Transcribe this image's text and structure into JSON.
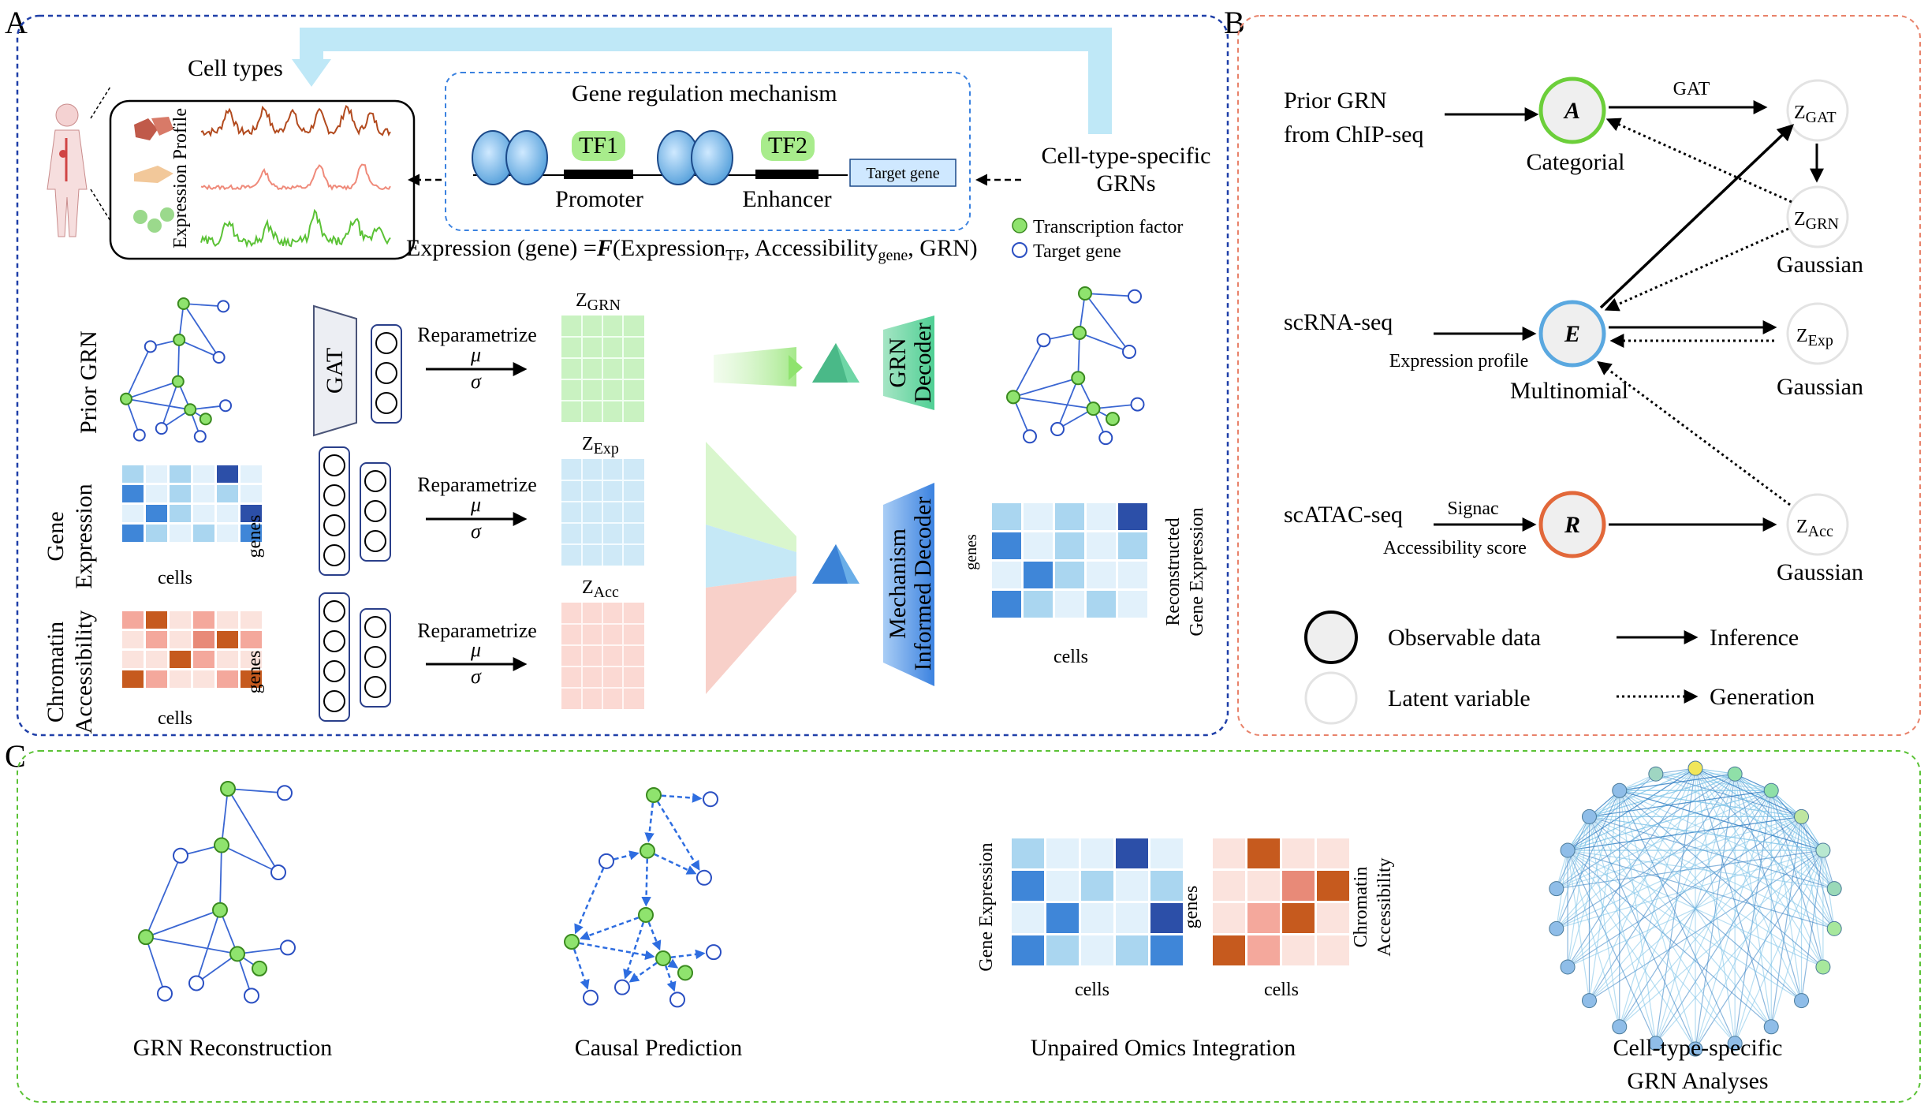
{
  "panels": {
    "a": {
      "letter": "A",
      "cell_types": "Cell types",
      "expression_profile": "Expression Profile",
      "mechanism_title": "Gene regulation mechanism",
      "tf1": "TF1",
      "tf2": "TF2",
      "promoter": "Promoter",
      "enhancer": "Enhancer",
      "target_gene": "Target gene",
      "ct_grns_line1": "Cell-type-specific",
      "ct_grns_line2": "GRNs",
      "formula_prefix": "Expression (gene) =",
      "formula_F": "F",
      "formula_open": "(Expression",
      "formula_sub_tf": "TF",
      "formula_mid": ", Accessibility",
      "formula_sub_gene": "gene",
      "formula_end": ", GRN)",
      "legend_tf": "Transcription factor",
      "legend_target": "Target gene",
      "row_prior": "Prior GRN",
      "row_gene_1": "Gene",
      "row_gene_2": "Expression",
      "row_chrom_1": "Chromatin",
      "row_chrom_2": "Accessibility",
      "genes": "genes",
      "cells": "cells",
      "gat": "GAT",
      "reparam": "Reparametrize",
      "mu": "μ",
      "sigma": "σ",
      "z": "Z",
      "z_grn_sub": "GRN",
      "z_exp_sub": "Exp",
      "z_acc_sub": "Acc",
      "grn_decoder_1": "GRN",
      "grn_decoder_2": "Decoder",
      "mech_decoder_1": "Mechanism",
      "mech_decoder_2": "Informed Decoder",
      "recon_1": "Reconstructed",
      "recon_2": "Gene Expression"
    },
    "b": {
      "letter": "B",
      "prior_1": "Prior GRN",
      "prior_2": "from ChIP-seq",
      "node_a": "A",
      "categorial": "Categorial",
      "gat": "GAT",
      "z": "Z",
      "gat_sub": "GAT",
      "grn_sub": "GRN",
      "exp_sub": "Exp",
      "acc_sub": "Acc",
      "gaussian": "Gaussian",
      "scrna": "scRNA-seq",
      "expr_profile": "Expression profile",
      "node_e": "E",
      "multinomial": "Multinomial",
      "scatac": "scATAC-seq",
      "signac": "Signac",
      "access_score": "Accessibility score",
      "node_r": "R",
      "observable": "Observable data",
      "latent": "Latent variable",
      "inference": "Inference",
      "generation": "Generation"
    },
    "c": {
      "letter": "C",
      "grn_recon": "GRN Reconstruction",
      "causal": "Causal Prediction",
      "unpaired": "Unpaired Omics Integration",
      "gene_expr": "Gene Expression",
      "genes": "genes",
      "chrom_1": "Chromatin",
      "chrom_2": "Accessibility",
      "cells": "cells",
      "ct_1": "Cell-type-specific",
      "ct_2": "GRN Analyses"
    }
  },
  "colors": {
    "blue_border": "#1f3fa8",
    "orange_border": "#e8826a",
    "green_border": "#5bc236",
    "node_green": "#8fe36e",
    "node_blue": "#2a4fc2",
    "arrow_blue": "#2e6de0",
    "node_a_ring": "#6ccf3a",
    "node_e_ring": "#5aa8e0",
    "node_r_ring": "#e2683a"
  }
}
